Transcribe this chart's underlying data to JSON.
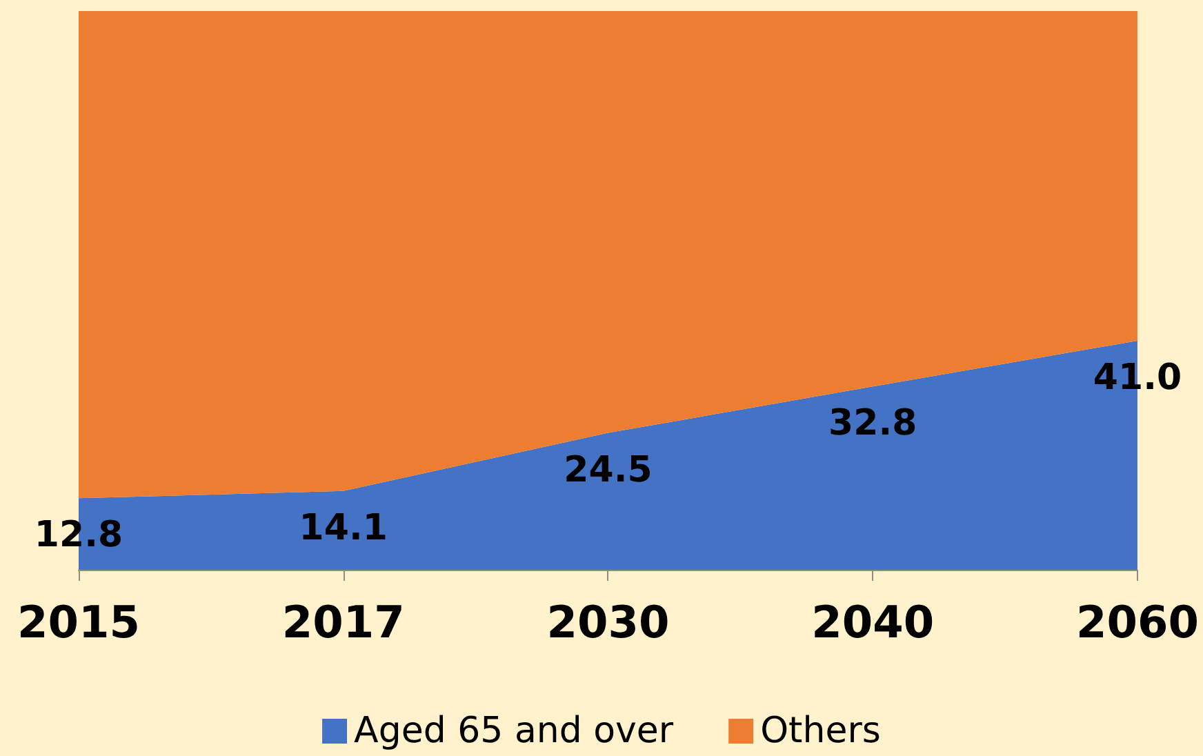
{
  "chart_data": {
    "type": "area",
    "stacked": true,
    "categories": [
      "2015",
      "2017",
      "2030",
      "2040",
      "2060"
    ],
    "series": [
      {
        "name": "Aged 65 and over",
        "color": "#4472c4",
        "values": [
          12.8,
          14.1,
          24.5,
          32.8,
          41.0
        ],
        "value_labels": [
          "12.8",
          "14.1",
          "24.5",
          "32.8",
          "41.0"
        ]
      },
      {
        "name": "Others",
        "color": "#ed7d31",
        "values": [
          87.2,
          85.9,
          75.5,
          67.2,
          59.0
        ]
      }
    ],
    "ylim": [
      0,
      100
    ],
    "tick_labels": "x",
    "legend": "bottom",
    "grid": false,
    "marker": "none"
  }
}
